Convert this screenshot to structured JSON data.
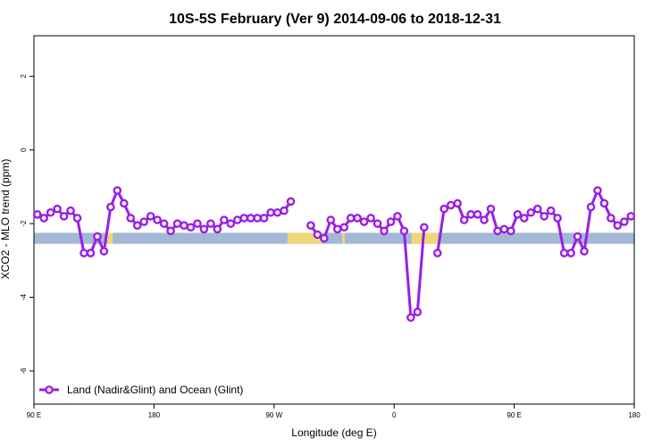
{
  "chart_data": {
    "type": "line",
    "title": "10S-5S February (Ver 9)   2014-09-06 to 2018-12-31",
    "xlabel": "Longitude (deg E)",
    "ylabel": "XCO2 - MLO trend (ppm)",
    "xlim": [
      90,
      540
    ],
    "ylim": [
      -6.9,
      3.1
    ],
    "x_tick_values": [
      90,
      180,
      270,
      360,
      450,
      540
    ],
    "x_tick_labels": [
      "90 E",
      "180",
      "90 W",
      "0",
      "90 E",
      "180"
    ],
    "y_ticks": [
      -6,
      -4,
      -2,
      0,
      2
    ],
    "grid": false,
    "legend_position": "bottom-left",
    "colors": {
      "series": "#9a1fe6",
      "ocean_band": "#a3b8d6",
      "land_band": "#f2d77a"
    },
    "series": [
      {
        "name": "Land (Nadir&Glint) and Ocean (Glint)",
        "segments": [
          [
            [
              92.5,
              -1.75
            ],
            [
              97.5,
              -1.85
            ],
            [
              102.5,
              -1.7
            ],
            [
              107.5,
              -1.6
            ],
            [
              112.5,
              -1.8
            ],
            [
              117.5,
              -1.65
            ],
            [
              122.5,
              -1.85
            ],
            [
              127.5,
              -2.8
            ],
            [
              132.5,
              -2.8
            ],
            [
              137.5,
              -2.35
            ],
            [
              142.5,
              -2.75
            ],
            [
              147.5,
              -1.55
            ],
            [
              152.5,
              -1.1
            ],
            [
              157.5,
              -1.45
            ],
            [
              162.5,
              -1.85
            ],
            [
              167.5,
              -2.05
            ],
            [
              172.5,
              -1.95
            ],
            [
              177.5,
              -1.8
            ],
            [
              182.5,
              -1.9
            ],
            [
              187.5,
              -2.0
            ],
            [
              192.5,
              -2.2
            ],
            [
              197.5,
              -2.0
            ],
            [
              202.5,
              -2.05
            ],
            [
              207.5,
              -2.1
            ],
            [
              212.5,
              -2.0
            ],
            [
              217.5,
              -2.15
            ],
            [
              222.5,
              -2.0
            ],
            [
              227.5,
              -2.15
            ],
            [
              232.5,
              -1.9
            ],
            [
              237.5,
              -2.0
            ],
            [
              242.5,
              -1.9
            ],
            [
              247.5,
              -1.85
            ],
            [
              252.5,
              -1.85
            ],
            [
              257.5,
              -1.85
            ],
            [
              262.5,
              -1.85
            ],
            [
              267.5,
              -1.7
            ],
            [
              272.5,
              -1.7
            ],
            [
              277.5,
              -1.65
            ],
            [
              282.5,
              -1.4
            ]
          ],
          [
            [
              297.5,
              -2.05
            ],
            [
              302.5,
              -2.3
            ],
            [
              307.5,
              -2.4
            ],
            [
              312.5,
              -1.9
            ],
            [
              317.5,
              -2.15
            ],
            [
              322.5,
              -2.1
            ],
            [
              327.5,
              -1.85
            ],
            [
              332.5,
              -1.85
            ],
            [
              337.5,
              -1.95
            ],
            [
              342.5,
              -1.85
            ],
            [
              347.5,
              -2.0
            ],
            [
              352.5,
              -2.2
            ],
            [
              357.5,
              -1.95
            ],
            [
              362.5,
              -1.8
            ],
            [
              367.5,
              -2.2
            ],
            [
              372.5,
              -4.55
            ],
            [
              377.5,
              -4.4
            ],
            [
              382.5,
              -2.1
            ]
          ],
          [
            [
              392.5,
              -2.8
            ],
            [
              397.5,
              -1.6
            ],
            [
              402.5,
              -1.5
            ],
            [
              407.5,
              -1.45
            ],
            [
              412.5,
              -1.9
            ],
            [
              417.5,
              -1.75
            ],
            [
              422.5,
              -1.75
            ],
            [
              427.5,
              -1.9
            ],
            [
              432.5,
              -1.6
            ],
            [
              437.5,
              -2.2
            ],
            [
              442.5,
              -2.15
            ],
            [
              447.5,
              -2.2
            ],
            [
              452.5,
              -1.75
            ],
            [
              457.5,
              -1.85
            ],
            [
              462.5,
              -1.7
            ],
            [
              467.5,
              -1.6
            ],
            [
              472.5,
              -1.8
            ],
            [
              477.5,
              -1.65
            ],
            [
              482.5,
              -1.85
            ],
            [
              487.5,
              -2.8
            ],
            [
              492.5,
              -2.8
            ],
            [
              497.5,
              -2.35
            ],
            [
              502.5,
              -2.75
            ],
            [
              507.5,
              -1.55
            ],
            [
              512.5,
              -1.1
            ],
            [
              517.5,
              -1.45
            ],
            [
              522.5,
              -1.85
            ],
            [
              527.5,
              -2.05
            ],
            [
              532.5,
              -1.95
            ],
            [
              537.5,
              -1.8
            ]
          ]
        ]
      }
    ],
    "surface_band": {
      "y_range": [
        -2.55,
        -2.25
      ],
      "land_intervals": [
        [
          145,
          149
        ],
        [
          280,
          306
        ],
        [
          321,
          323
        ],
        [
          373,
          393
        ]
      ]
    }
  }
}
